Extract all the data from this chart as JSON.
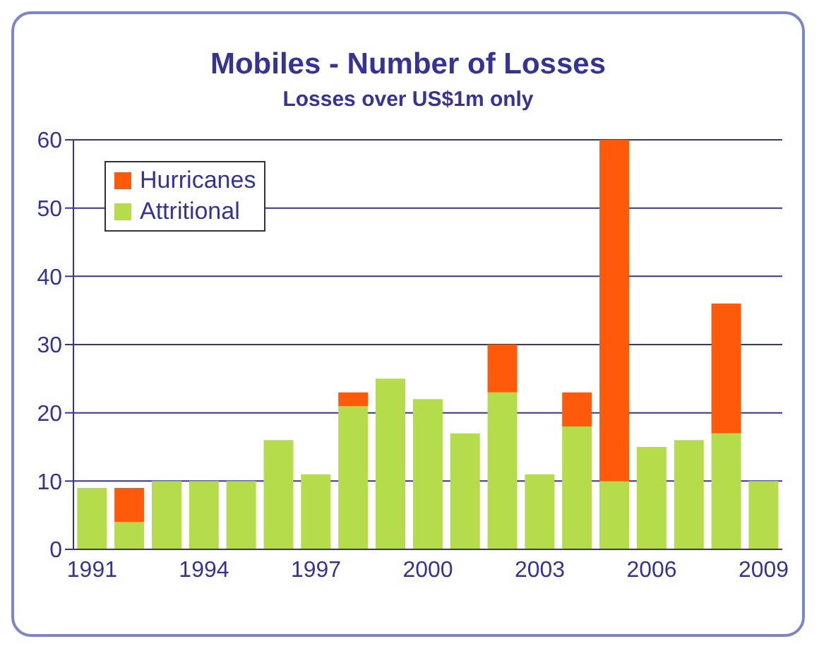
{
  "chart_data": {
    "type": "bar",
    "title": "Mobiles - Number of Losses",
    "subtitle": "Losses over US$1m only",
    "categories": [
      "1991",
      null,
      null,
      "1994",
      null,
      null,
      "1997",
      null,
      null,
      "2000",
      null,
      null,
      "2003",
      null,
      null,
      "2006",
      null,
      null,
      "2009"
    ],
    "stacked": true,
    "series": [
      {
        "name": "Attritional",
        "color": "#b5dc4a",
        "values": [
          9,
          4,
          10,
          10,
          10,
          16,
          11,
          21,
          25,
          22,
          17,
          23,
          11,
          18,
          10,
          15,
          16,
          17,
          10
        ]
      },
      {
        "name": "Hurricanes",
        "color": "#ff5a0a",
        "values": [
          null,
          5,
          null,
          null,
          null,
          null,
          null,
          2,
          null,
          null,
          null,
          7,
          null,
          5,
          50,
          null,
          null,
          19,
          null
        ]
      }
    ],
    "ylim": [
      0,
      60
    ],
    "yticks": [
      0,
      10,
      20,
      30,
      40,
      50,
      60
    ],
    "grid": "y",
    "legend": "top left"
  }
}
